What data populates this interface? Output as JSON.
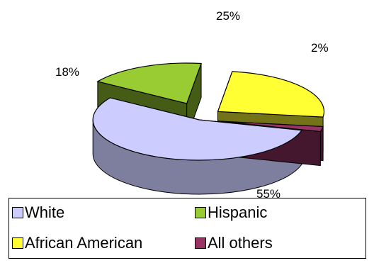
{
  "chart_data": {
    "type": "pie",
    "style": "3d-exploded",
    "categories": [
      "White",
      "Hispanic",
      "African American",
      "All others"
    ],
    "values": [
      55,
      18,
      25,
      2
    ],
    "labels": [
      "55%",
      "18%",
      "25%",
      "2%"
    ],
    "colors": {
      "White": "#ccccff",
      "Hispanic": "#99cc33",
      "African American": "#ffff33",
      "All others": "#993366"
    },
    "legend_position": "bottom"
  },
  "legend": {
    "items": [
      {
        "label": "White",
        "color": "#ccccff"
      },
      {
        "label": "Hispanic",
        "color": "#99cc33"
      },
      {
        "label": "African American",
        "color": "#ffff33"
      },
      {
        "label": "All others",
        "color": "#993366"
      }
    ]
  }
}
